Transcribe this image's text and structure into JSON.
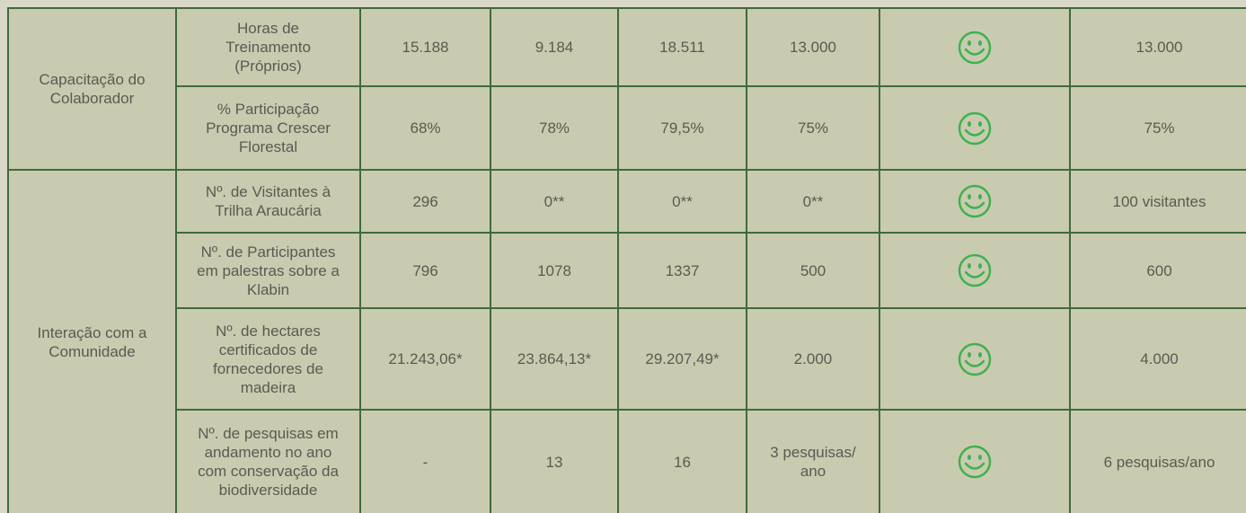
{
  "table": {
    "groups": [
      {
        "label": "Capacitação do\nColaborador",
        "rows": [
          {
            "indicator": "Horas de\nTreinamento\n(Próprios)",
            "values": [
              "15.188",
              "9.184",
              "18.511",
              "13.000"
            ],
            "goal": "13.000"
          },
          {
            "indicator": "%  Participação\nPrograma Crescer\nFlorestal",
            "values": [
              "68%",
              "78%",
              "79,5%",
              "75%"
            ],
            "goal": "75%"
          }
        ]
      },
      {
        "label": "Interação com a\nComunidade",
        "rows": [
          {
            "indicator": "Nº. de Visitantes à\nTrilha Araucária",
            "values": [
              "296",
              "0**",
              "0**",
              "0**"
            ],
            "goal": "100 visitantes"
          },
          {
            "indicator": "Nº. de Participantes\nem palestras sobre a\nKlabin",
            "values": [
              "796",
              "1078",
              "1337",
              "500"
            ],
            "goal": "600"
          },
          {
            "indicator": "Nº. de hectares\ncertificados de\nfornecedores de\nmadeira",
            "values": [
              "21.243,06*",
              "23.864,13*",
              "29.207,49*",
              "2.000"
            ],
            "goal": "4.000"
          },
          {
            "indicator": "Nº. de pesquisas em\nandamento no ano\ncom conservação da\nbiodiversidade",
            "values": [
              "-",
              "13",
              "16",
              "3 pesquisas/\nano"
            ],
            "goal": "6 pesquisas/ano"
          }
        ]
      }
    ]
  }
}
